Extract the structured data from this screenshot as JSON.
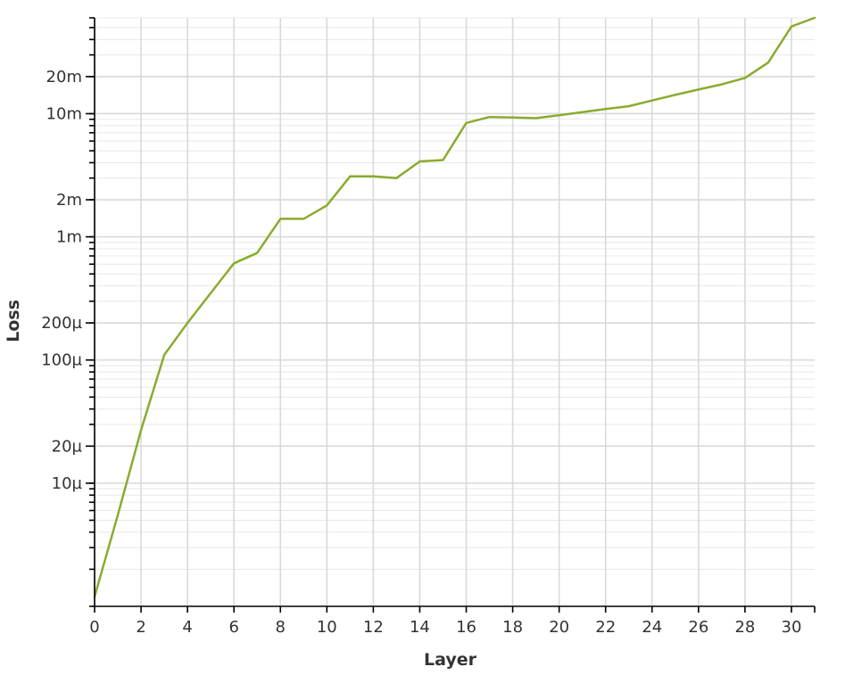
{
  "chart_data": {
    "type": "line",
    "title": "",
    "xlabel": "Layer",
    "ylabel": "Loss",
    "xlim": [
      0,
      31
    ],
    "ylim": [
      1e-06,
      0.06
    ],
    "yscale": "log",
    "grid": true,
    "legend": "none",
    "x_ticks": [
      0,
      2,
      4,
      6,
      8,
      10,
      12,
      14,
      16,
      18,
      20,
      22,
      24,
      26,
      28,
      30
    ],
    "x_tick_labels": [
      "0",
      "2",
      "4",
      "6",
      "8",
      "10",
      "12",
      "14",
      "16",
      "18",
      "20",
      "22",
      "24",
      "26",
      "28",
      "30"
    ],
    "y_ticks": [
      1e-05,
      2e-05,
      0.0001,
      0.0002,
      0.001,
      0.002,
      0.01,
      0.02
    ],
    "y_tick_labels": [
      "10µ",
      "20µ",
      "100µ",
      "200µ",
      "1m",
      "2m",
      "10m",
      "20m"
    ],
    "series": [
      {
        "color": "#8aab2f",
        "x": [
          0,
          1,
          2,
          3,
          4,
          5,
          6,
          7,
          8,
          9,
          10,
          11,
          12,
          13,
          14,
          15,
          16,
          17,
          18,
          19,
          20,
          21,
          22,
          23,
          24,
          25,
          26,
          27,
          28,
          29,
          30,
          31
        ],
        "values": [
          1.2e-06,
          5.5e-06,
          2.7e-05,
          0.00011,
          0.0002,
          0.00035,
          0.00061,
          0.00074,
          0.0014,
          0.0014,
          0.0018,
          0.0031,
          0.0031,
          0.003,
          0.0041,
          0.0042,
          0.0084,
          0.0094,
          0.0093,
          0.0092,
          0.0097,
          0.0103,
          0.0109,
          0.0115,
          0.0128,
          0.0142,
          0.0157,
          0.0173,
          0.0195,
          0.026,
          0.051,
          0.06
        ]
      }
    ]
  }
}
